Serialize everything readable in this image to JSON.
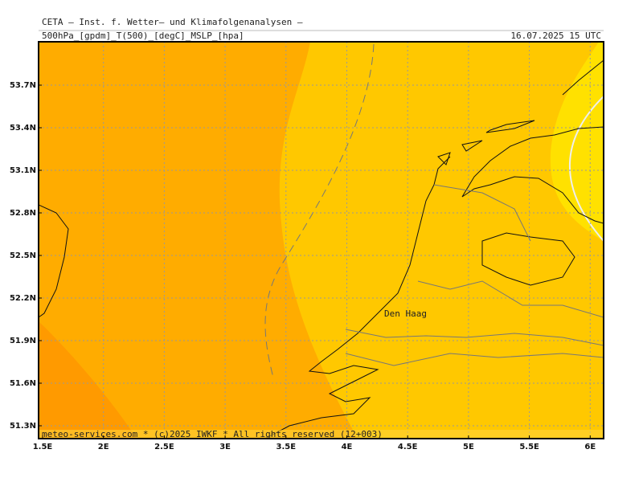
{
  "header": {
    "title": "CETA — Inst. f. Wetter— und Klimafolgenanalysen —",
    "product": "500hPa_[gpdm]_T(500)_[degC]_MSLP_[hpa]",
    "valid_time": "16.07.2025 15 UTC"
  },
  "map": {
    "lon_labels": [
      "1.5E",
      "2E",
      "2.5E",
      "3E",
      "3.5E",
      "4E",
      "4.5E",
      "5E",
      "5.5E",
      "6E"
    ],
    "lat_labels": [
      "53.7N",
      "53.4N",
      "53.1N",
      "52.8N",
      "52.5N",
      "52.2N",
      "51.9N",
      "51.6N",
      "51.3N"
    ],
    "place": "Den Haag",
    "footer": "meteo-services.com * (c)2025 IWKF * All rights reserved (12+003)"
  }
}
